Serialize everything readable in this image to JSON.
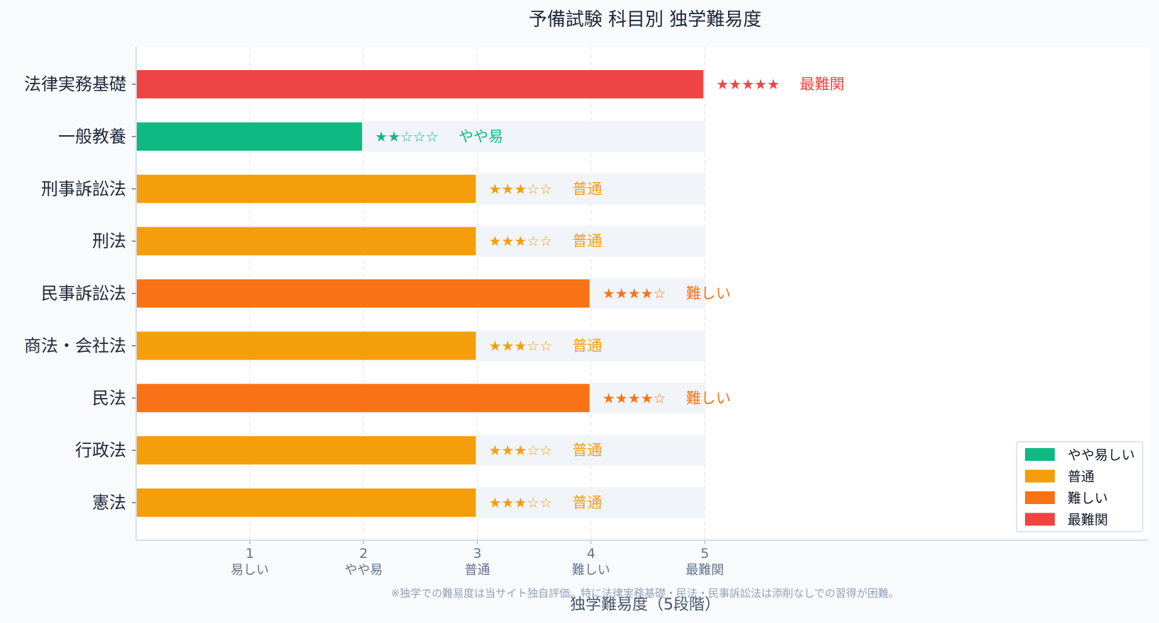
{
  "chart_data": {
    "type": "bar",
    "orientation": "horizontal",
    "title": "予備試験 科目別 独学難易度",
    "xlabel": "独学難易度（5段階）",
    "ylabel": "",
    "xlim": [
      0,
      8.9
    ],
    "grid": "vertical dashed",
    "xticks": [
      {
        "value": 1,
        "num": "1",
        "label": "易しい"
      },
      {
        "value": 2,
        "num": "2",
        "label": "やや易"
      },
      {
        "value": 3,
        "num": "3",
        "label": "普通"
      },
      {
        "value": 4,
        "num": "4",
        "label": "難しい"
      },
      {
        "value": 5,
        "num": "5",
        "label": "最難関"
      }
    ],
    "max_value": 5,
    "categories": [
      "法律実務基礎",
      "一般教養",
      "刑事訴訟法",
      "刑法",
      "民事訴訟法",
      "商法・会社法",
      "民法",
      "行政法",
      "憲法"
    ],
    "values": [
      5,
      2,
      3,
      3,
      4,
      3,
      4,
      3,
      3
    ],
    "bar_labels": [
      {
        "stars": "★★★★★",
        "text": "最難関"
      },
      {
        "stars": "★★☆☆☆",
        "text": "やや易"
      },
      {
        "stars": "★★★☆☆",
        "text": "普通"
      },
      {
        "stars": "★★★☆☆",
        "text": "普通"
      },
      {
        "stars": "★★★★☆",
        "text": "難しい"
      },
      {
        "stars": "★★★☆☆",
        "text": "普通"
      },
      {
        "stars": "★★★★☆",
        "text": "難しい"
      },
      {
        "stars": "★★★☆☆",
        "text": "普通"
      },
      {
        "stars": "★★★☆☆",
        "text": "普通"
      }
    ],
    "legend": {
      "position": "bottom-right",
      "items": [
        {
          "label": "やや易しい",
          "color": "#10b981"
        },
        {
          "label": "普通",
          "color": "#f59e0b"
        },
        {
          "label": "難しい",
          "color": "#f97316"
        },
        {
          "label": "最難関",
          "color": "#ef4444"
        }
      ]
    },
    "colors_by_value": {
      "2": "#10b981",
      "3": "#f59e0b",
      "4": "#f97316",
      "5": "#ef4444"
    },
    "track_color": "#f1f5f9",
    "note": "※独学での難易度は当サイト独自評価。特に法律実務基礎・民法・民事訴訟法は添削なしでの習得が困難。"
  }
}
